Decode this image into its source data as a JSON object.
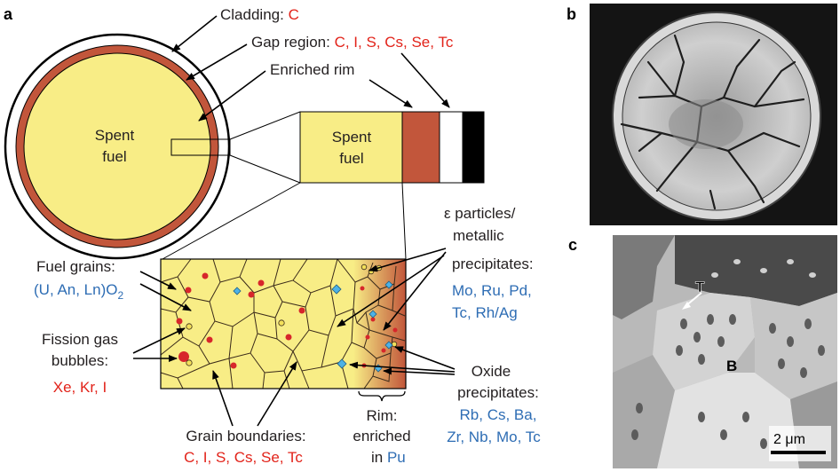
{
  "panels": {
    "a": "a",
    "b": "b",
    "c": "c"
  },
  "cladding": {
    "label": "Cladding: ",
    "elements": "C"
  },
  "gap": {
    "label": "Gap region: ",
    "elements": "C, I, S, Cs, Se, Tc"
  },
  "rim_label": "Enriched rim",
  "spent_fuel": {
    "line1": "Spent",
    "line2": "fuel"
  },
  "fuel_grains": {
    "label": "Fuel grains:",
    "formula": "(U, An, Ln)O",
    "sub": "2"
  },
  "fission_gas": {
    "line1": "Fission gas",
    "line2": "bubbles:",
    "elements": "Xe, Kr, I"
  },
  "grain_boundaries": {
    "label": "Grain boundaries:",
    "elements": "C, I, S, Cs, Se, Tc"
  },
  "rim_enriched": {
    "line1": "Rim:",
    "line2": "enriched",
    "line3": "in ",
    "element": "Pu"
  },
  "epsilon": {
    "line1": "ε particles/",
    "line2": "metallic",
    "line3": "precipitates:",
    "el1": "Mo, Ru, Pd,",
    "el2": "Tc, Rh/Ag"
  },
  "oxide": {
    "line1": "Oxide",
    "line2": "precipitates:",
    "el1": "Rb, Cs, Ba,",
    "el2": "Zr, Nb, Mo, Tc"
  },
  "micrograph_c": {
    "label_t": "T",
    "label_b": "B",
    "scale": "2 μm"
  },
  "colors": {
    "fuel": "#f8ed86",
    "rim": "#c2563b",
    "cladding": "#000000",
    "red_text": "#e2231a",
    "blue_text": "#2e6db4",
    "bubble_red": "#d7262b",
    "diamond_blue": "#4db2e6"
  }
}
